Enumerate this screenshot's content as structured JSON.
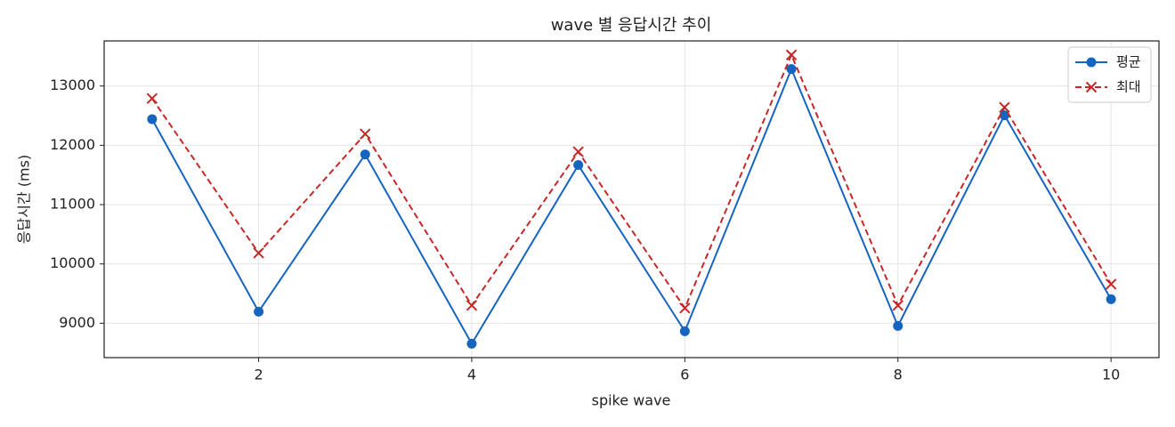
{
  "chart_data": {
    "type": "line",
    "title": "wave 별 응답시간 추이",
    "xlabel": "spike wave",
    "ylabel": "응답시간 (ms)",
    "x": [
      1,
      2,
      3,
      4,
      5,
      6,
      7,
      8,
      9,
      10
    ],
    "series": [
      {
        "name": "평균",
        "color": "#1565c0",
        "marker": "o",
        "linestyle": "-",
        "values": [
          12440,
          9195,
          11846,
          8655,
          11667,
          8865,
          13285,
          8955,
          12506,
          9404
        ]
      },
      {
        "name": "최대",
        "color": "#c62828",
        "marker": "x",
        "linestyle": "--",
        "values": [
          12790,
          10184,
          12191,
          9300,
          11891,
          9255,
          13524,
          9300,
          12640,
          9659
        ]
      }
    ],
    "xlim": [
      0.55,
      10.45
    ],
    "ylim": [
      8420,
      13760
    ],
    "xticks": [
      2,
      4,
      6,
      8,
      10
    ],
    "yticks": [
      9000,
      10000,
      11000,
      12000,
      13000
    ],
    "grid": true,
    "legend": "upper right"
  }
}
